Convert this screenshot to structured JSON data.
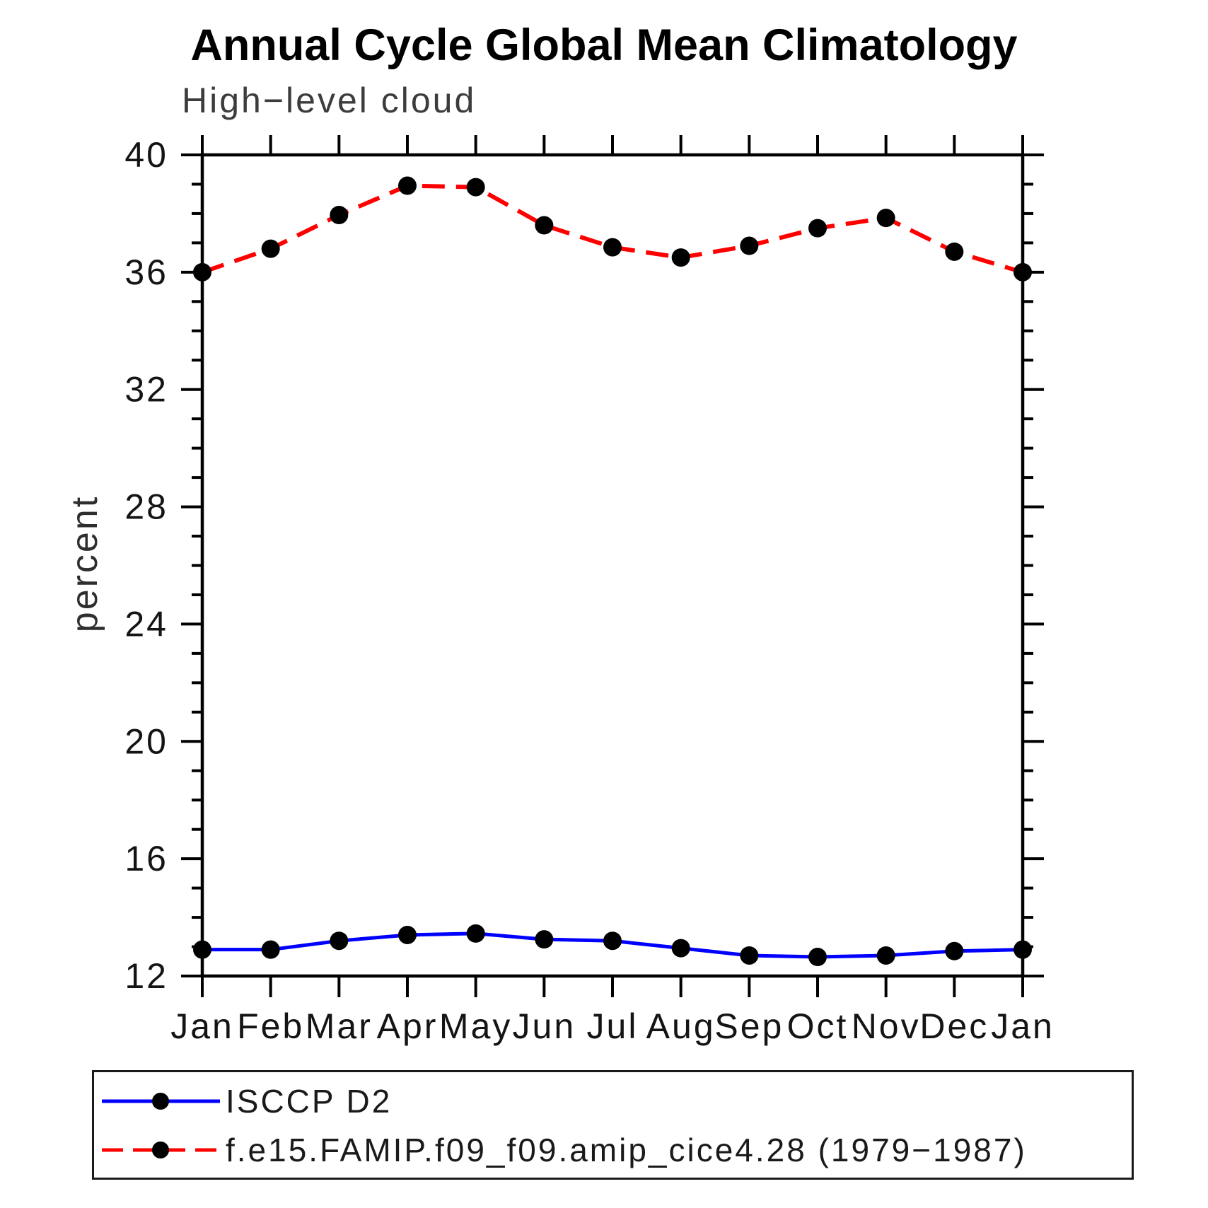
{
  "chart_data": {
    "type": "line",
    "title": "Annual Cycle Global Mean Climatology",
    "subtitle": "High−level cloud",
    "xlabel": "",
    "ylabel": "percent",
    "ylim": [
      12,
      40
    ],
    "ytick_major": [
      12,
      16,
      20,
      24,
      28,
      32,
      36,
      40
    ],
    "ytick_minor_step": 1,
    "grid": "off",
    "legend_position": "bottom-box",
    "categories": [
      "Jan",
      "Feb",
      "Mar",
      "Apr",
      "May",
      "Jun",
      "Jul",
      "Aug",
      "Sep",
      "Oct",
      "Nov",
      "Dec",
      "Jan"
    ],
    "series": [
      {
        "name": "ISCCP D2",
        "color": "#0000ff",
        "style": "solid",
        "marker": "filled-circle",
        "marker_color": "#000000",
        "values": [
          12.9,
          12.9,
          13.2,
          13.4,
          13.45,
          13.25,
          13.2,
          12.95,
          12.7,
          12.65,
          12.7,
          12.85,
          12.9
        ]
      },
      {
        "name": "f.e15.FAMIP.f09_f09.amip_cice4.28 (1979−1987)",
        "color": "#ff0000",
        "style": "dashed",
        "marker": "filled-circle",
        "marker_color": "#000000",
        "values": [
          36.0,
          36.8,
          37.95,
          38.95,
          38.9,
          37.6,
          36.85,
          36.5,
          36.9,
          37.5,
          37.85,
          36.7,
          36.0
        ]
      }
    ]
  }
}
